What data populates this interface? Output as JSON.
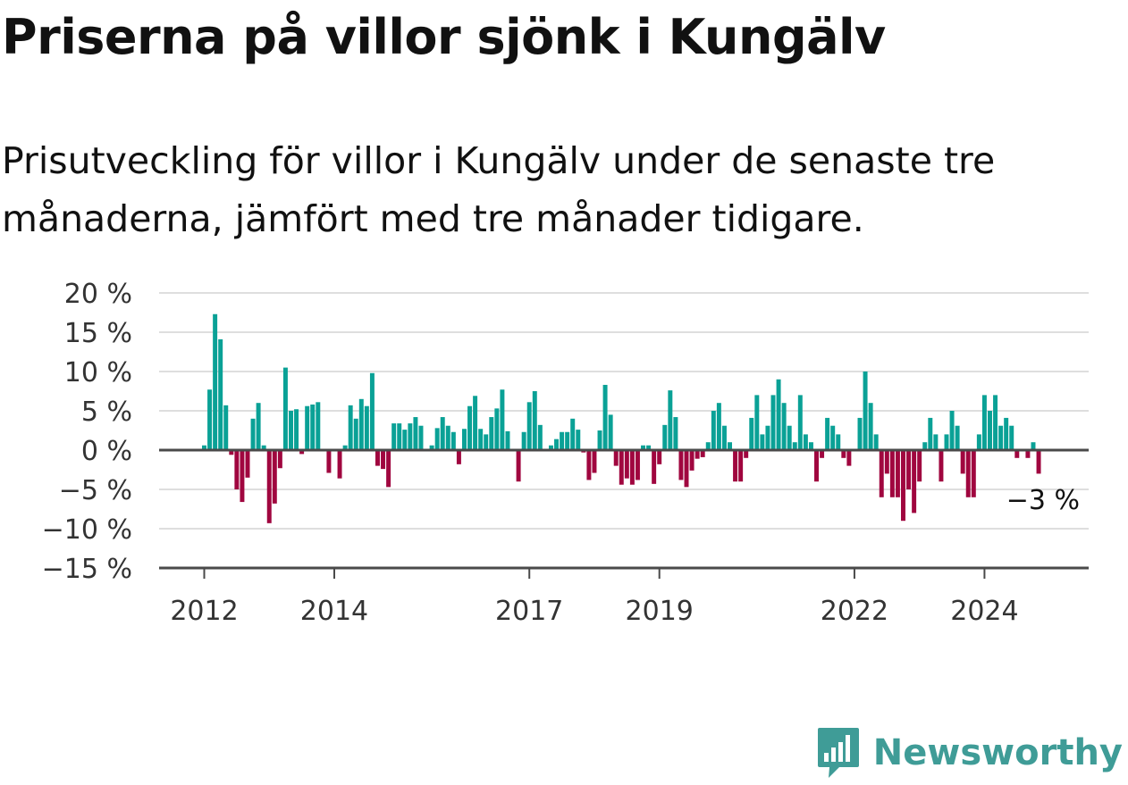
{
  "title": "Priserna på villor sjönk i Kungälv",
  "subtitle": "Prisutveckling för villor i Kungälv under de senaste tre månaderna, jämfört med tre månader tidigare.",
  "brand": {
    "name": "Newsworthy",
    "icon": "chart-bubble-icon"
  },
  "colors": {
    "positive": "#0aa196",
    "negative": "#a0063f",
    "grid": "#dedede",
    "zero": "#4a4a4a",
    "brand": "#3f9c97"
  },
  "chart_data": {
    "type": "bar",
    "title": "",
    "xlabel": "",
    "ylabel": "",
    "ylim": [
      -15,
      20
    ],
    "grid": true,
    "y_ticks": [
      {
        "value": 20,
        "label": "20 %"
      },
      {
        "value": 15,
        "label": "15 %"
      },
      {
        "value": 10,
        "label": "10 %"
      },
      {
        "value": 5,
        "label": "5 %"
      },
      {
        "value": 0,
        "label": "0 %"
      },
      {
        "value": -5,
        "label": "−5 %"
      },
      {
        "value": -10,
        "label": "−10 %"
      },
      {
        "value": -15,
        "label": "−15 %"
      }
    ],
    "x_ticks": [
      {
        "index": 0,
        "label": "2012"
      },
      {
        "index": 24,
        "label": "2014"
      },
      {
        "index": 60,
        "label": "2017"
      },
      {
        "index": 84,
        "label": "2019"
      },
      {
        "index": 120,
        "label": "2022"
      },
      {
        "index": 144,
        "label": "2024"
      }
    ],
    "x_start": "2012-01",
    "x_end": "2024-12",
    "values": [
      0.6,
      7.7,
      17.3,
      14.1,
      5.7,
      -0.6,
      -5,
      -6.6,
      -3.5,
      4,
      6,
      0.6,
      -9.3,
      -6.8,
      -2.3,
      10.5,
      5,
      5.2,
      -0.5,
      5.6,
      5.8,
      6.1,
      0,
      -2.9,
      0,
      -3.6,
      0.6,
      5.7,
      4,
      6.5,
      5.6,
      9.8,
      -2,
      -2.4,
      -4.7,
      3.4,
      3.4,
      2.6,
      3.4,
      4.2,
      3.1,
      0,
      0.6,
      2.8,
      4.2,
      3.1,
      2.3,
      -1.8,
      2.7,
      5.6,
      6.9,
      2.7,
      2,
      4.2,
      5.3,
      7.7,
      2.4,
      0,
      -4,
      2.3,
      6.1,
      7.5,
      3.2,
      0,
      0.6,
      1.4,
      2.3,
      2.3,
      4,
      2.6,
      -0.3,
      -3.8,
      -2.9,
      2.5,
      8.3,
      4.5,
      -2,
      -4.4,
      -3.6,
      -4.4,
      -3.8,
      0.6,
      0.6,
      -4.3,
      -1.8,
      3.2,
      7.6,
      4.2,
      -3.8,
      -4.7,
      -2.6,
      -1.1,
      -0.9,
      1,
      5,
      6,
      3.1,
      1,
      -4,
      -4,
      -1,
      4.1,
      7,
      2,
      3.1,
      7,
      9,
      6,
      3.1,
      1,
      7,
      2,
      1,
      -4,
      -1,
      4.1,
      3.1,
      2,
      -1,
      -2,
      0,
      4.1,
      10,
      6,
      2,
      -6,
      -3,
      -6,
      -6,
      -9,
      -5,
      -8,
      -4,
      1,
      4.1,
      2,
      -4,
      2,
      5,
      3.1,
      -3,
      -6,
      -6,
      2,
      7,
      5,
      7,
      3.1,
      4.1,
      3.1,
      -1,
      0,
      -1,
      1,
      -3
    ],
    "end_label": "−3 %"
  }
}
